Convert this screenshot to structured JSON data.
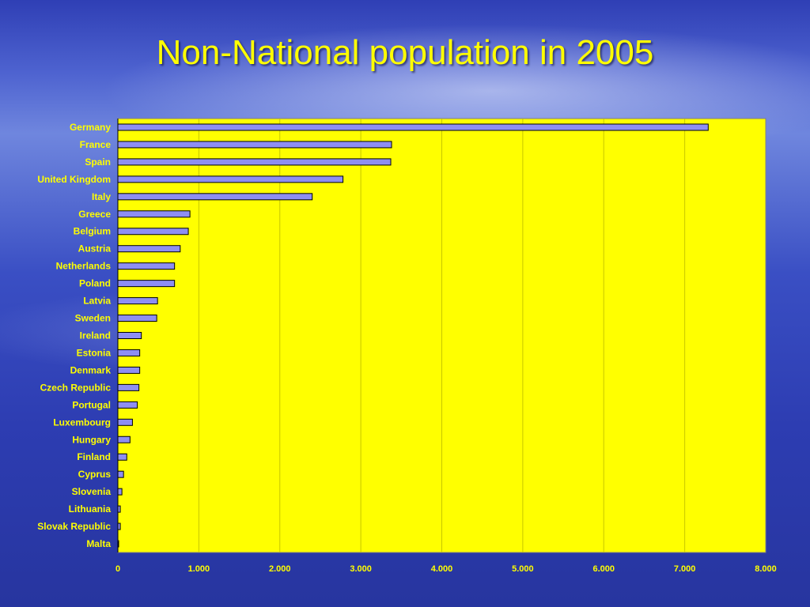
{
  "title": "Non-National population in 2005",
  "chart_data": {
    "type": "bar",
    "orientation": "horizontal",
    "title": "Non-National population in 2005",
    "xlabel": "",
    "ylabel": "",
    "xlim": [
      0,
      8000
    ],
    "x_ticks": [
      0,
      1000,
      2000,
      3000,
      4000,
      5000,
      6000,
      7000,
      8000
    ],
    "x_tick_labels": [
      "0",
      "1.000",
      "2.000",
      "3.000",
      "4.000",
      "5.000",
      "6.000",
      "7.000",
      "8.000"
    ],
    "grid": "vertical",
    "categories": [
      "Germany",
      "France",
      "Spain",
      "United Kingdom",
      "Italy",
      "Greece",
      "Belgium",
      "Austria",
      "Netherlands",
      "Poland",
      "Latvia",
      "Sweden",
      "Ireland",
      "Estonia",
      "Denmark",
      "Czech Republic",
      "Portugal",
      "Luxembourg",
      "Hungary",
      "Finland",
      "Cyprus",
      "Slovenia",
      "Lithuania",
      "Slovak Republic",
      "Malta"
    ],
    "values": [
      7290,
      3380,
      3370,
      2780,
      2400,
      890,
      870,
      770,
      700,
      700,
      490,
      480,
      290,
      270,
      270,
      260,
      240,
      180,
      150,
      110,
      70,
      50,
      30,
      30,
      10
    ],
    "colors": {
      "plot_background": "#ffff00",
      "bar_fill": "#8e8ef2",
      "bar_stroke": "#000000",
      "text": "#ffff00"
    }
  }
}
